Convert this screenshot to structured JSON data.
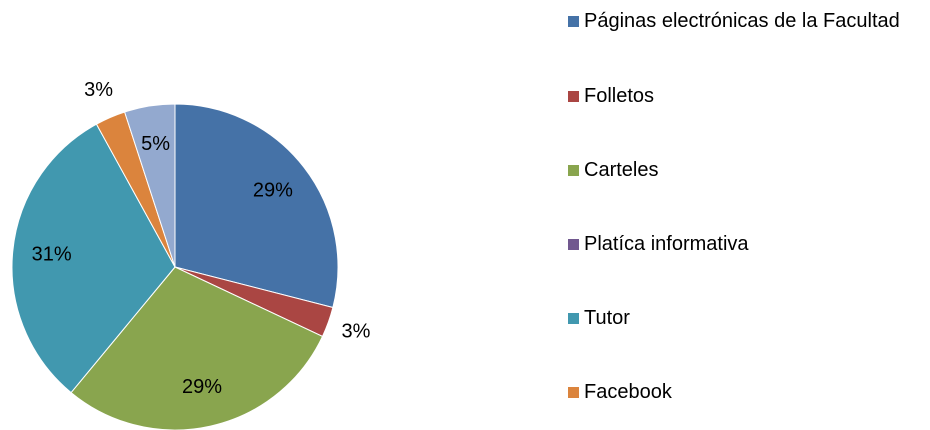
{
  "chart_data": {
    "type": "pie",
    "categories": [
      "Páginas electrónicas de la Facultad",
      "Folletos",
      "Carteles",
      "Platíca informativa",
      "Tutor",
      "Facebook",
      null
    ],
    "values": [
      29,
      3,
      29,
      0,
      31,
      3,
      5
    ],
    "value_labels": [
      "29%",
      "3%",
      "29%",
      null,
      "31%",
      "3%",
      "5%"
    ],
    "colors": [
      "#4572A7",
      "#AA4643",
      "#89A54E",
      "#71588F",
      "#4198AF",
      "#DB843D",
      "#93A9CF"
    ],
    "legend": "right"
  }
}
